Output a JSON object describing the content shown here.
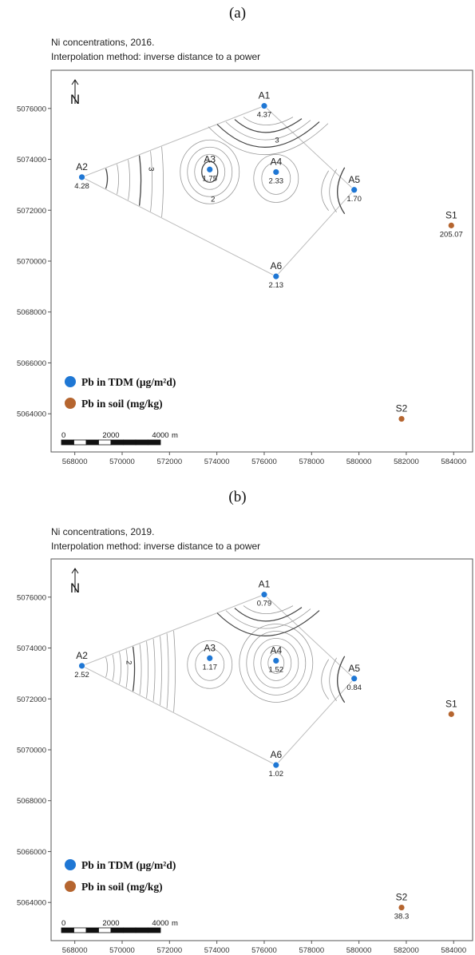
{
  "colors": {
    "tdm_marker": "#1f77d4",
    "soil_marker": "#b5652f",
    "contour": "#9a9a9a",
    "contour_strong": "#444444"
  },
  "legend": {
    "tdm": "Pb in TDM (μg/m²d)",
    "soil": "Pb in soil (mg/kg)"
  },
  "scale_bar": {
    "labels": [
      "0",
      "2000",
      "4000"
    ],
    "unit": "m"
  },
  "north_arrow": {
    "label": "N",
    "icon": "north-arrow-icon"
  },
  "chart_data": [
    {
      "type": "scatter",
      "panel_label": "(a)",
      "title": "Ni concentrations, 2016.",
      "subtitle": "Interpolation method: inverse distance to a power",
      "xlim": [
        567000,
        584800
      ],
      "ylim": [
        5062500,
        5077500
      ],
      "x_ticks": [
        "568000",
        "570000",
        "572000",
        "574000",
        "576000",
        "578000",
        "580000",
        "582000",
        "584000"
      ],
      "y_ticks": [
        "5064000",
        "5066000",
        "5068000",
        "5070000",
        "5072000",
        "5074000",
        "5076000"
      ],
      "contour_labels": [
        "3",
        "3",
        "2"
      ],
      "tdm_stations": [
        {
          "name": "A1",
          "x": 576000,
          "y": 5076100,
          "value": "4.37"
        },
        {
          "name": "A2",
          "x": 568300,
          "y": 5073300,
          "value": "4.28"
        },
        {
          "name": "A3",
          "x": 573700,
          "y": 5073600,
          "value": "1.75"
        },
        {
          "name": "A4",
          "x": 576500,
          "y": 5073500,
          "value": "2.33"
        },
        {
          "name": "A5",
          "x": 579800,
          "y": 5072800,
          "value": "1.70"
        },
        {
          "name": "A6",
          "x": 576500,
          "y": 5069400,
          "value": "2.13"
        }
      ],
      "soil_stations": [
        {
          "name": "S1",
          "x": 583900,
          "y": 5071400,
          "value": "205.07"
        },
        {
          "name": "S2",
          "x": 581800,
          "y": 5063800,
          "value": ""
        }
      ]
    },
    {
      "type": "scatter",
      "panel_label": "(b)",
      "title": "Ni concentrations, 2019.",
      "subtitle": "Interpolation method: inverse distance to a power",
      "xlim": [
        567000,
        584800
      ],
      "ylim": [
        5062500,
        5077500
      ],
      "x_ticks": [
        "568000",
        "570000",
        "572000",
        "574000",
        "576000",
        "578000",
        "580000",
        "582000",
        "584000"
      ],
      "y_ticks": [
        "5064000",
        "5066000",
        "5068000",
        "5070000",
        "5072000",
        "5074000",
        "5076000"
      ],
      "contour_labels": [
        "2"
      ],
      "tdm_stations": [
        {
          "name": "A1",
          "x": 576000,
          "y": 5076100,
          "value": "0.79"
        },
        {
          "name": "A2",
          "x": 568300,
          "y": 5073300,
          "value": "2.52"
        },
        {
          "name": "A3",
          "x": 573700,
          "y": 5073600,
          "value": "1.17"
        },
        {
          "name": "A4",
          "x": 576500,
          "y": 5073500,
          "value": "1.52"
        },
        {
          "name": "A5",
          "x": 579800,
          "y": 5072800,
          "value": "0.84"
        },
        {
          "name": "A6",
          "x": 576500,
          "y": 5069400,
          "value": "1.02"
        }
      ],
      "soil_stations": [
        {
          "name": "S1",
          "x": 583900,
          "y": 5071400,
          "value": ""
        },
        {
          "name": "S2",
          "x": 581800,
          "y": 5063800,
          "value": "38.3"
        }
      ]
    }
  ]
}
